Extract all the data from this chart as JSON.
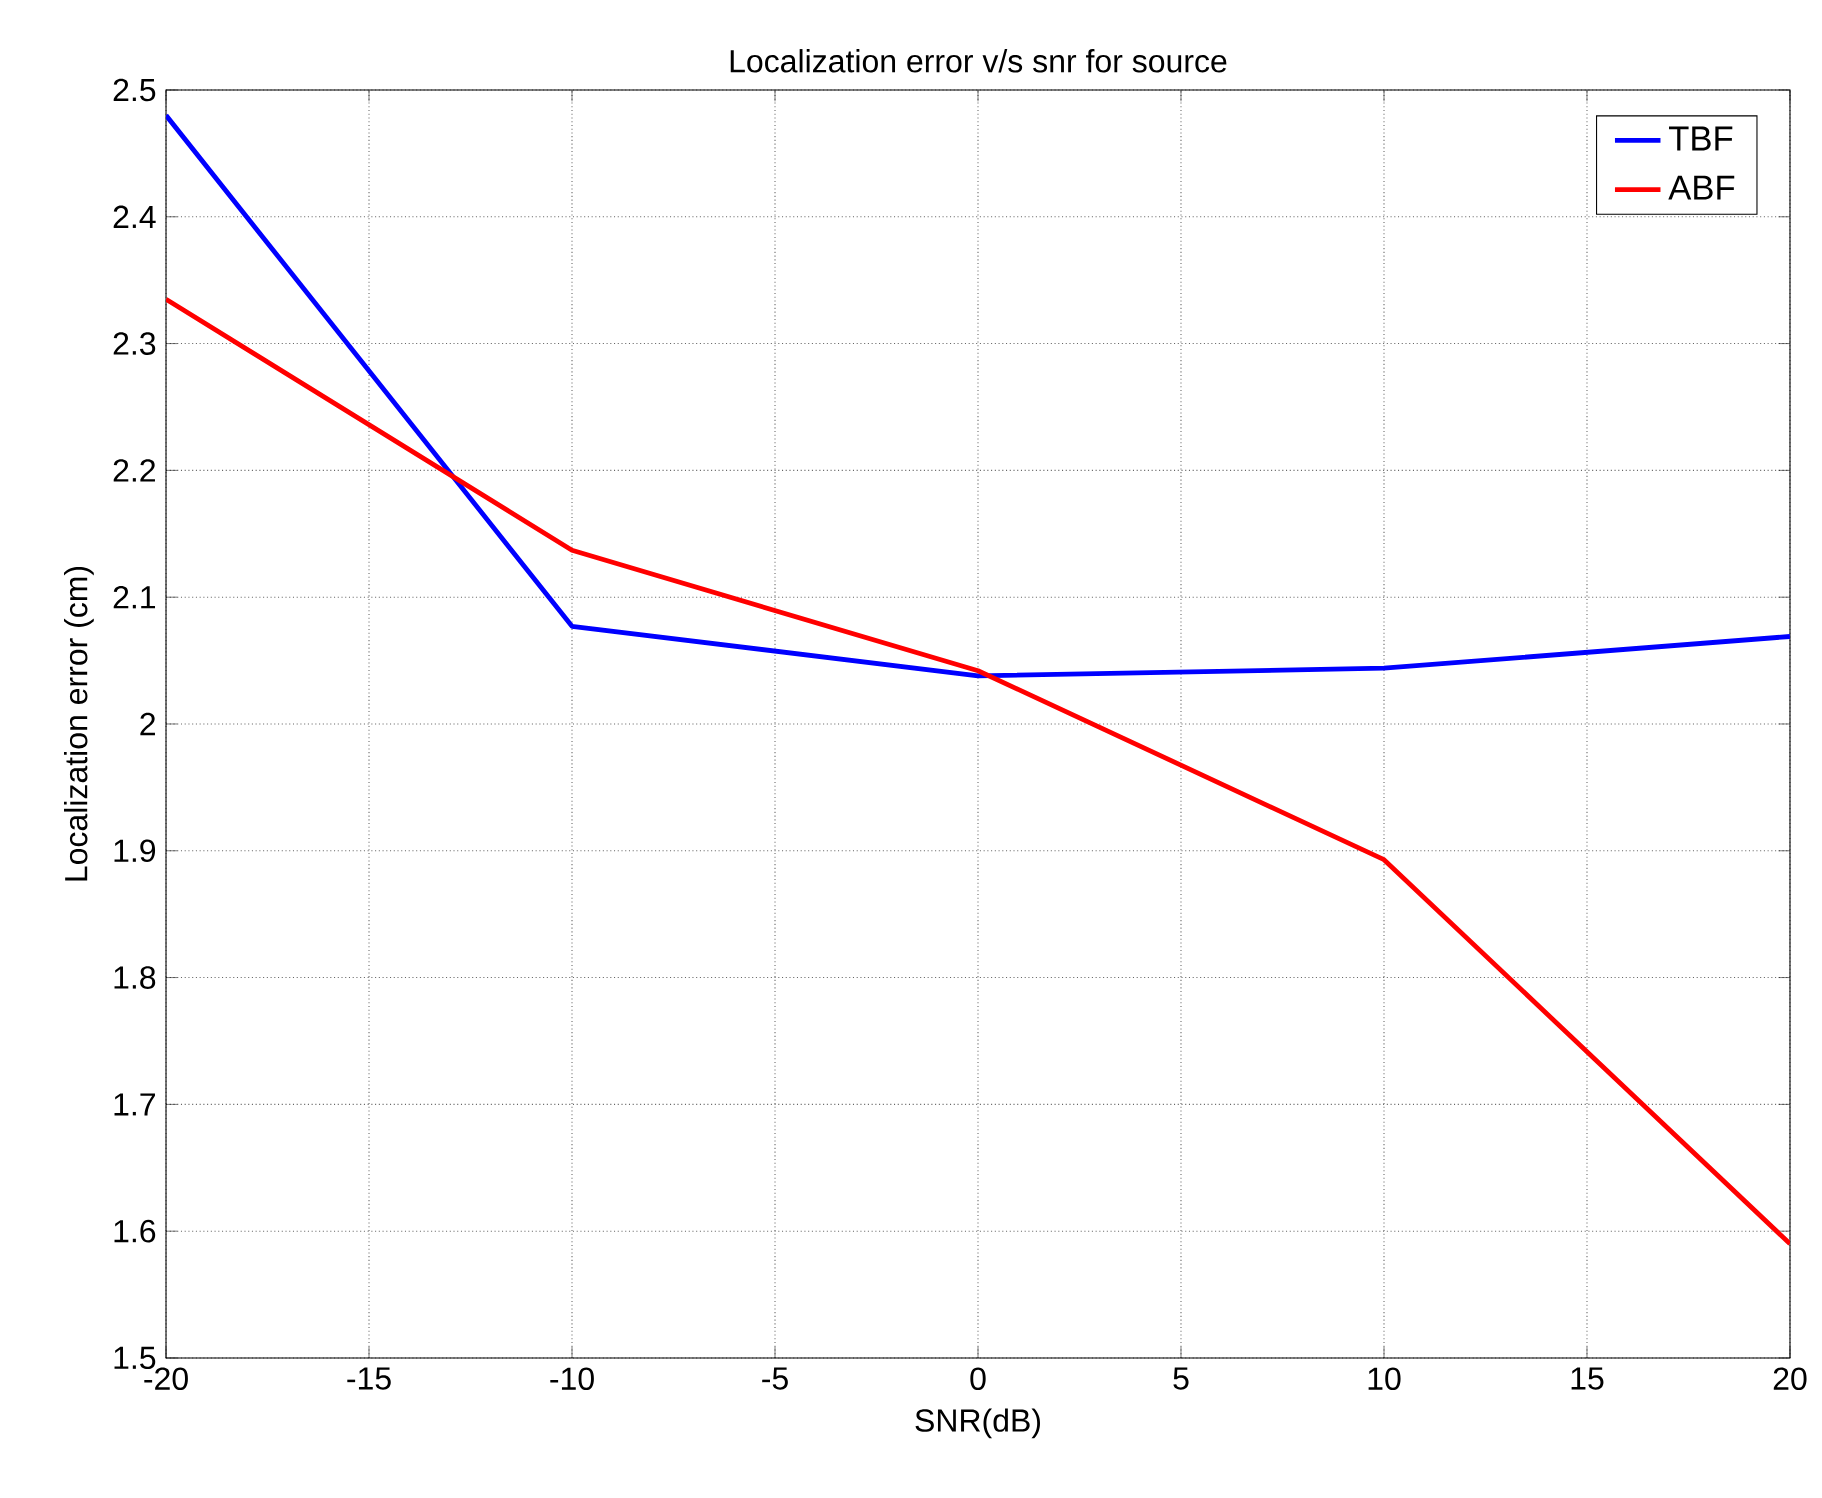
{
  "chart_data": {
    "type": "line",
    "title": "Localization error v/s snr for source",
    "xlabel": "SNR(dB)",
    "ylabel": "Localization error (cm)",
    "x": [
      -20,
      -10,
      0,
      10,
      20
    ],
    "series": [
      {
        "name": "TBF",
        "color": "#0000ff",
        "values": [
          2.48,
          2.077,
          2.038,
          2.044,
          2.069
        ]
      },
      {
        "name": "ABF",
        "color": "#ff0000",
        "values": [
          2.335,
          2.137,
          2.042,
          1.893,
          1.59
        ]
      }
    ],
    "xlim": [
      -20,
      20
    ],
    "xticks": [
      -20,
      -15,
      -10,
      -5,
      0,
      5,
      10,
      15,
      20
    ],
    "ylim": [
      1.5,
      2.5
    ],
    "yticks": [
      1.5,
      1.6,
      1.7,
      1.8,
      1.9,
      2,
      2.1,
      2.2,
      2.3,
      2.4,
      2.5
    ],
    "grid": true,
    "legend": "top right",
    "marker": "none",
    "line_style": "solid"
  }
}
